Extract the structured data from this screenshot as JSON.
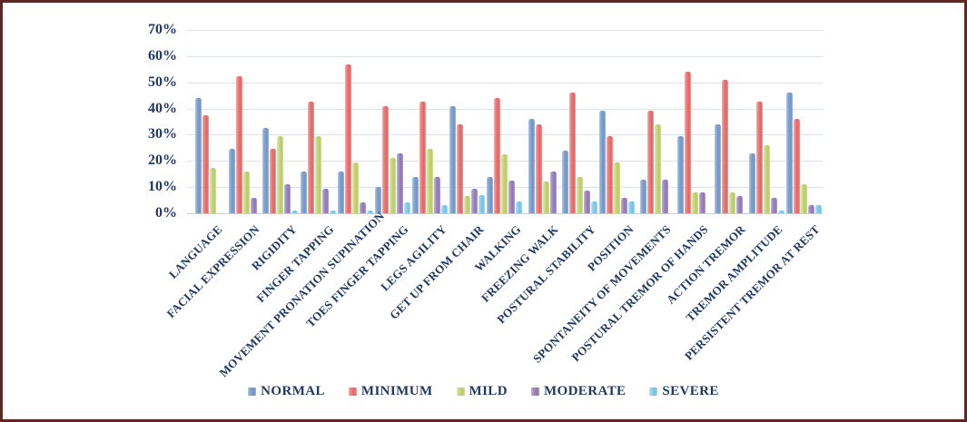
{
  "figure": {
    "border_color": "#5e2725",
    "background": "#ffffff",
    "text_color": "#1f3864",
    "gridline_color": "#dde3ec"
  },
  "colors": {
    "normal": "#6d95c7",
    "minimum": "#e4615f",
    "mild": "#b6cc60",
    "moderate": "#8d74b4",
    "severe": "#6dc2e4"
  },
  "chart_data": {
    "type": "bar",
    "title": "",
    "xlabel": "",
    "ylabel": "",
    "grid": true,
    "legend_position": "bottom",
    "y_axis": {
      "min": 0,
      "max": 70,
      "step": 10,
      "tick_labels": [
        "0%",
        "10%",
        "20%",
        "30%",
        "40%",
        "50%",
        "60%",
        "70%"
      ]
    },
    "categories": [
      "LANGUAGE",
      "FACIAL EXPRESSION",
      "RIGIDITY",
      "FINGER TAPPING",
      "MOVEMENT PRONATION SUPINATION",
      "TOES FINGER TAPPING",
      "LEGS AGILITY",
      "GET UP FROM CHAIR",
      "WALKING",
      "FREEZING WALK",
      "POSTURAL STABILITY",
      "POSITION",
      "SPONTANEITY OF MOVEMENTS",
      "POSTURAL TREMOR OF HANDS",
      "ACTION TREMOR",
      "TREMOR AMPLITUDE",
      "PERSISTENT TREMOR AT REST"
    ],
    "series": [
      {
        "name": "NORMAL",
        "color_key": "normal",
        "values": [
          44,
          24.5,
          32.5,
          16,
          16,
          10,
          14,
          41,
          14,
          36,
          24,
          39,
          13,
          29.5,
          34,
          23,
          46
        ]
      },
      {
        "name": "MINIMUM",
        "color_key": "minimum",
        "values": [
          37.5,
          52.5,
          24.5,
          42.5,
          57,
          41,
          42.5,
          34,
          44,
          34,
          46,
          29.5,
          39,
          54,
          51,
          42.5,
          36
        ]
      },
      {
        "name": "MILD",
        "color_key": "mild",
        "values": [
          17.5,
          16,
          29.5,
          29.5,
          19.5,
          21,
          24.5,
          6.5,
          22.5,
          12,
          14,
          19.5,
          34,
          8,
          8,
          26,
          11
        ]
      },
      {
        "name": "MODERATE",
        "color_key": "moderate",
        "values": [
          0,
          6,
          11,
          9.5,
          4,
          23,
          14,
          9.5,
          12.5,
          16,
          8.5,
          6,
          13,
          8,
          6.5,
          6,
          3
        ]
      },
      {
        "name": "SEVERE",
        "color_key": "severe",
        "values": [
          0,
          0,
          1,
          1,
          1,
          4,
          3,
          7,
          4.5,
          0,
          4.5,
          4.5,
          0,
          0,
          0,
          1,
          3
        ]
      }
    ]
  }
}
